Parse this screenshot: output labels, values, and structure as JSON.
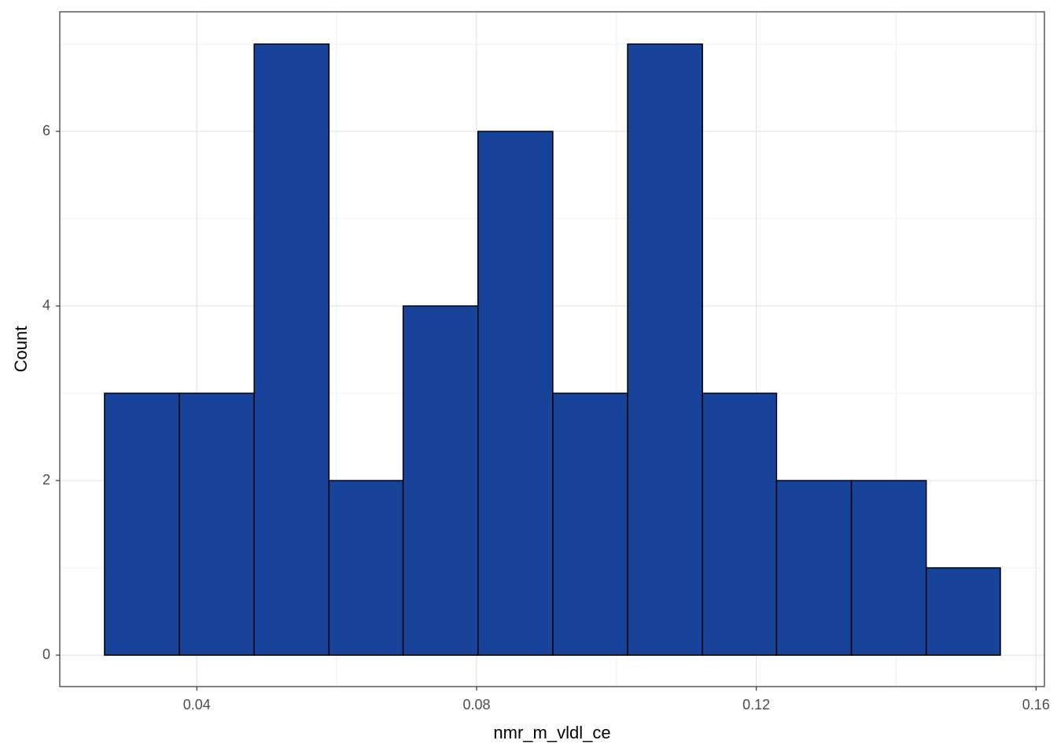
{
  "chart_data": {
    "type": "histogram",
    "xlabel": "nmr_m_vldl_ce",
    "ylabel": "Count",
    "bins": [
      0.0268,
      0.0375,
      0.0482,
      0.0589,
      0.0695,
      0.0802,
      0.0909,
      0.1016,
      0.1123,
      0.1229,
      0.1336,
      0.1443,
      0.1549
    ],
    "counts": [
      3,
      3,
      7,
      2,
      4,
      6,
      3,
      7,
      3,
      2,
      2,
      1
    ],
    "color": "#18439a",
    "xlim": [
      0.0204,
      0.1612
    ],
    "ylim": [
      -0.36,
      7.37
    ],
    "xticks": [
      0.04,
      0.08,
      0.12,
      0.16
    ],
    "yticks": [
      0,
      2,
      4,
      6
    ],
    "grid": true
  }
}
